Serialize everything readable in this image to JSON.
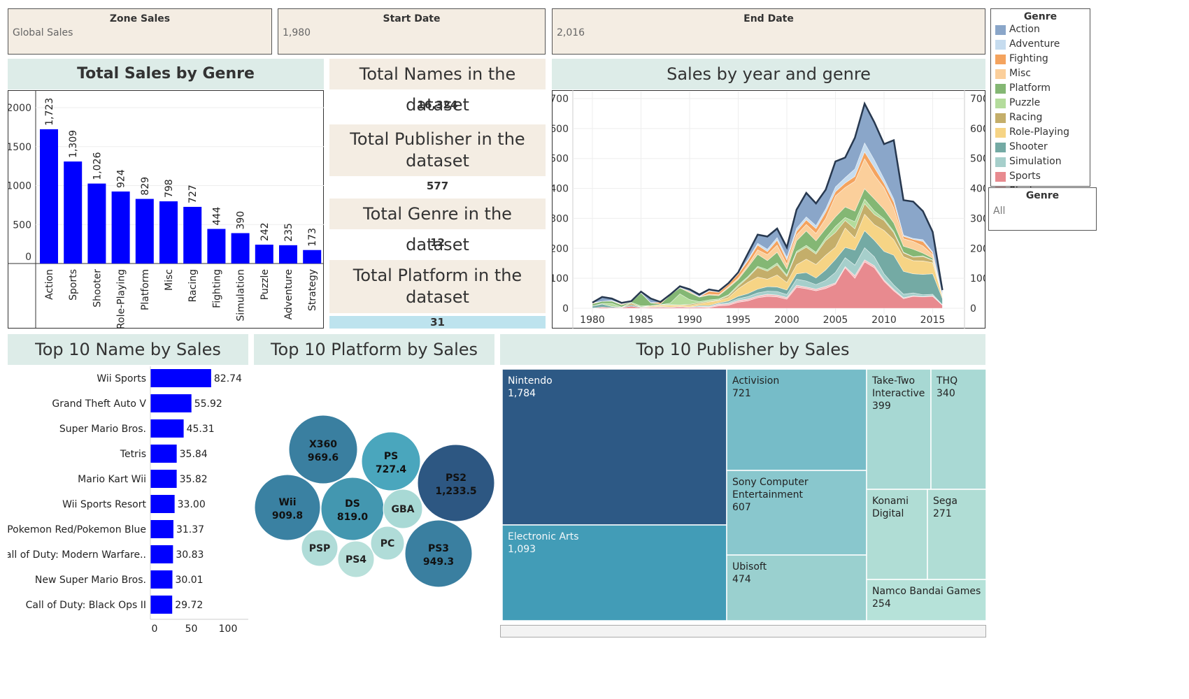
{
  "filters": {
    "zone": {
      "label": "Zone Sales",
      "value": "Global Sales"
    },
    "start": {
      "label": "Start Date",
      "value": "1,980"
    },
    "end": {
      "label": "End Date",
      "value": "2,016"
    }
  },
  "legend": {
    "title": "Genre",
    "items": [
      {
        "label": "Action",
        "color": "#8aa6c9"
      },
      {
        "label": "Adventure",
        "color": "#c6dcef"
      },
      {
        "label": "Fighting",
        "color": "#f4a35e"
      },
      {
        "label": "Misc",
        "color": "#fbcf9b"
      },
      {
        "label": "Platform",
        "color": "#84b774"
      },
      {
        "label": "Puzzle",
        "color": "#b4dc9c"
      },
      {
        "label": "Racing",
        "color": "#c4ae6a"
      },
      {
        "label": "Role-Playing",
        "color": "#f6d485"
      },
      {
        "label": "Shooter",
        "color": "#74aaa4"
      },
      {
        "label": "Simulation",
        "color": "#a6cfcb"
      },
      {
        "label": "Sports",
        "color": "#e88a8f"
      },
      {
        "label": "Strategy",
        "color": "#f6c0c1"
      }
    ]
  },
  "genre_filter": {
    "label": "Genre",
    "value": "All"
  },
  "kpis": {
    "names": {
      "title": "Total Names in the dataset",
      "value": "16,324"
    },
    "publisher": {
      "title_line1": "Total Publisher in the",
      "title_line2": "dataset",
      "value": "577"
    },
    "genre": {
      "title": "Total Genre in the dataset",
      "value": "12"
    },
    "platform": {
      "title_line1": "Total Platform in the",
      "title_line2": "dataset",
      "value": "31"
    }
  },
  "titles": {
    "genre_sales": "Total Sales by Genre",
    "year_genre": "Sales by year and genre",
    "top_names": "Top 10 Name by Sales",
    "top_platform": "Top 10 Platform by Sales",
    "top_publisher": "Top 10 Publisher by Sales"
  },
  "chart_data": [
    {
      "type": "bar",
      "title": "Total Sales by Genre",
      "categories": [
        "Action",
        "Sports",
        "Shooter",
        "Role-Playing",
        "Platform",
        "Misc",
        "Racing",
        "Fighting",
        "Simulation",
        "Puzzle",
        "Adventure",
        "Strategy"
      ],
      "values": [
        1723,
        1309,
        1026,
        924,
        829,
        798,
        727,
        444,
        390,
        242,
        235,
        173
      ],
      "value_labels": [
        "1,723",
        "1,309",
        "1,026",
        "924",
        "829",
        "798",
        "727",
        "444",
        "390",
        "242",
        "235",
        "173"
      ],
      "yticks": [
        "2000",
        "1500",
        "1000",
        "500",
        "0"
      ],
      "ylim": [
        0,
        2000
      ],
      "color": "#0000ff"
    },
    {
      "type": "area",
      "title": "Sales by year and genre",
      "stacked": true,
      "x": [
        1980,
        1981,
        1982,
        1983,
        1984,
        1985,
        1986,
        1987,
        1988,
        1989,
        1990,
        1991,
        1992,
        1993,
        1994,
        1995,
        1996,
        1997,
        1998,
        1999,
        2000,
        2001,
        2002,
        2003,
        2004,
        2005,
        2006,
        2007,
        2008,
        2009,
        2010,
        2011,
        2012,
        2013,
        2014,
        2015,
        2016
      ],
      "xticks": [
        "1980",
        "1985",
        "1990",
        "1995",
        "2000",
        "2005",
        "2010",
        "2015"
      ],
      "yticks": [
        "0",
        "100",
        "200",
        "300",
        "400",
        "500",
        "600",
        "700"
      ],
      "ylim": [
        0,
        700
      ],
      "series": [
        {
          "name": "Sports",
          "color": "#e88a8f",
          "values": [
            0.5,
            4,
            2,
            2,
            7,
            2,
            3,
            4,
            3,
            5,
            3,
            4,
            2,
            8,
            10,
            20,
            25,
            35,
            40,
            38,
            30,
            70,
            65,
            58,
            66,
            80,
            135,
            100,
            155,
            135,
            90,
            58,
            32,
            40,
            38,
            40,
            10
          ]
        },
        {
          "name": "Strategy",
          "color": "#f6c0c1",
          "values": [
            0,
            0,
            0,
            0,
            0,
            0,
            0,
            0,
            0,
            0,
            0,
            1,
            3,
            5,
            5,
            6,
            6,
            6,
            7,
            6,
            6,
            7,
            6,
            6,
            7,
            5,
            4,
            9,
            7,
            7,
            5,
            5,
            3,
            2,
            1,
            2,
            1
          ]
        },
        {
          "name": "Simulation",
          "color": "#a6cfcb",
          "values": [
            0,
            0,
            0,
            0,
            0,
            0,
            0,
            0,
            0,
            0,
            0,
            1,
            1,
            2,
            4,
            6,
            8,
            10,
            10,
            12,
            10,
            20,
            20,
            15,
            20,
            35,
            30,
            35,
            40,
            30,
            20,
            15,
            12,
            9,
            6,
            5,
            1
          ]
        },
        {
          "name": "Shooter",
          "color": "#74aaa4",
          "values": [
            7,
            10,
            4,
            1,
            4,
            2,
            1,
            2,
            1,
            1,
            1,
            3,
            3,
            3,
            5,
            8,
            10,
            13,
            15,
            15,
            15,
            18,
            28,
            22,
            35,
            43,
            34,
            50,
            57,
            55,
            75,
            99,
            76,
            64,
            68,
            68,
            20
          ]
        },
        {
          "name": "Role-Playing",
          "color": "#f6d485",
          "values": [
            0,
            0,
            0,
            0,
            0,
            0,
            3,
            5,
            6,
            5,
            5,
            6,
            12,
            8,
            12,
            25,
            38,
            40,
            25,
            40,
            25,
            30,
            45,
            45,
            49,
            41,
            65,
            41,
            55,
            52,
            70,
            52,
            49,
            44,
            45,
            37,
            6
          ]
        },
        {
          "name": "Racing",
          "color": "#c4ae6a",
          "values": [
            0,
            0,
            0,
            0,
            6,
            0,
            2,
            1,
            2,
            0,
            4,
            4,
            2,
            2,
            6,
            8,
            15,
            32,
            27,
            34,
            20,
            40,
            40,
            35,
            49,
            49,
            25,
            30,
            35,
            34,
            33,
            23,
            13,
            12,
            15,
            8,
            2
          ]
        },
        {
          "name": "Puzzle",
          "color": "#b4dc9c",
          "values": [
            0,
            2,
            10,
            1,
            3,
            4,
            0,
            0,
            5,
            37,
            16,
            3,
            5,
            3,
            3,
            5,
            4,
            4,
            5,
            6,
            5,
            5,
            6,
            6,
            9,
            20,
            10,
            24,
            15,
            12,
            6,
            5,
            2,
            1,
            2,
            1,
            0
          ]
        },
        {
          "name": "Platform",
          "color": "#84b774",
          "values": [
            7,
            7,
            8,
            7,
            1,
            43,
            9,
            2,
            27,
            20,
            23,
            15,
            16,
            11,
            23,
            18,
            31,
            40,
            30,
            36,
            20,
            35,
            48,
            38,
            31,
            32,
            35,
            35,
            35,
            40,
            31,
            28,
            20,
            25,
            9,
            6,
            1
          ]
        },
        {
          "name": "Misc",
          "color": "#fbcf9b",
          "values": [
            3,
            0,
            1,
            3,
            1,
            0,
            1,
            0,
            0,
            1,
            5,
            1,
            3,
            3,
            4,
            5,
            8,
            15,
            20,
            24,
            16,
            20,
            22,
            25,
            34,
            70,
            65,
            100,
            100,
            80,
            72,
            50,
            25,
            26,
            24,
            12,
            1
          ]
        },
        {
          "name": "Fighting",
          "color": "#f4a35e",
          "values": [
            1,
            0,
            0,
            0,
            0,
            1,
            0,
            6,
            0,
            0,
            0,
            0,
            10,
            8,
            8,
            13,
            14,
            16,
            10,
            16,
            14,
            12,
            15,
            16,
            21,
            14,
            15,
            16,
            23,
            25,
            15,
            19,
            8,
            7,
            15,
            6,
            2
          ]
        },
        {
          "name": "Adventure",
          "color": "#c6dcef",
          "values": [
            0,
            0,
            1,
            1,
            0,
            0,
            0,
            0,
            0,
            0,
            0,
            1,
            2,
            2,
            2,
            2,
            4,
            6,
            8,
            9,
            9,
            10,
            10,
            10,
            11,
            16,
            18,
            25,
            30,
            25,
            15,
            11,
            4,
            3,
            6,
            3,
            1
          ]
        },
        {
          "name": "Action",
          "color": "#8aa6c9",
          "values": [
            0.3,
            14.8,
            6.5,
            2.9,
            1.9,
            3.5,
            13.7,
            1.1,
            1.8,
            4.6,
            6.4,
            6.8,
            3.8,
            2.5,
            1.7,
            3.6,
            20,
            28.7,
            42.3,
            30,
            33,
            62,
            80,
            74,
            64,
            85,
            67,
            104,
            131,
            126,
            116,
            196,
            117,
            123,
            95,
            67,
            16
          ]
        }
      ]
    },
    {
      "type": "bar",
      "orientation": "horizontal",
      "title": "Top 10 Name by Sales",
      "categories": [
        "Wii Sports",
        "Grand Theft Auto V",
        "Super Mario Bros.",
        "Tetris",
        "Mario Kart Wii",
        "Wii Sports Resort",
        "Pokemon Red/Pokemon Blue",
        "Call of Duty: Modern Warfare..",
        "New Super Mario Bros.",
        "Call of Duty: Black Ops II"
      ],
      "values": [
        82.74,
        55.92,
        45.31,
        35.84,
        35.82,
        33.0,
        31.37,
        30.83,
        30.01,
        29.72
      ],
      "value_labels": [
        "82.74",
        "55.92",
        "45.31",
        "35.84",
        "35.82",
        "33.00",
        "31.37",
        "30.83",
        "30.01",
        "29.72"
      ],
      "xticks": [
        "0",
        "50",
        "100"
      ],
      "xlim": [
        0,
        120
      ],
      "color": "#0000ff"
    },
    {
      "type": "scatter",
      "subtype": "packed-bubble",
      "title": "Top 10 Platform by Sales",
      "bubbles": [
        {
          "label": "PS2",
          "value": 1233.5,
          "value_label": "1,233.5",
          "color": "#2d5782"
        },
        {
          "label": "X360",
          "value": 969.6,
          "value_label": "969.6",
          "color": "#3a7fa0"
        },
        {
          "label": "PS3",
          "value": 949.3,
          "value_label": "949.3",
          "color": "#3a7fa0"
        },
        {
          "label": "Wii",
          "value": 909.8,
          "value_label": "909.8",
          "color": "#3a81a2"
        },
        {
          "label": "DS",
          "value": 819.0,
          "value_label": "819.0",
          "color": "#4397b0"
        },
        {
          "label": "PS",
          "value": 727.4,
          "value_label": "727.4",
          "color": "#4aa6bd"
        },
        {
          "label": "GBA",
          "value": null,
          "value_label": "",
          "color": "#a8d9d5"
        },
        {
          "label": "PSP",
          "value": null,
          "value_label": "",
          "color": "#b0dcd8"
        },
        {
          "label": "PC",
          "value": null,
          "value_label": "",
          "color": "#b0dcd8"
        },
        {
          "label": "PS4",
          "value": null,
          "value_label": "",
          "color": "#b8e0da"
        }
      ]
    },
    {
      "type": "table",
      "subtype": "treemap",
      "title": "Top 10 Publisher by Sales",
      "cells": [
        {
          "label": "Nintendo",
          "value": "1,784",
          "color": "#2d5985"
        },
        {
          "label": "Electronic Arts",
          "value": "1,093",
          "color": "#429cb7"
        },
        {
          "label": "Activision",
          "value": "721",
          "color": "#76bcc8"
        },
        {
          "label": "Sony Computer Entertainment",
          "value": "607",
          "color": "#89c7cd"
        },
        {
          "label": "Ubisoft",
          "value": "474",
          "color": "#9ad0cf"
        },
        {
          "label": "Take-Two Interactive",
          "value": "399",
          "color": "#a7d8d3"
        },
        {
          "label": "THQ",
          "value": "340",
          "color": "#a9d9d4"
        },
        {
          "label": "Konami Digital",
          "value": "",
          "color": "#b0ddd5"
        },
        {
          "label": "Sega",
          "value": "271",
          "color": "#b0ddd5"
        },
        {
          "label": "Namco Bandai Games",
          "value": "254",
          "color": "#b6e2d9"
        }
      ]
    }
  ]
}
